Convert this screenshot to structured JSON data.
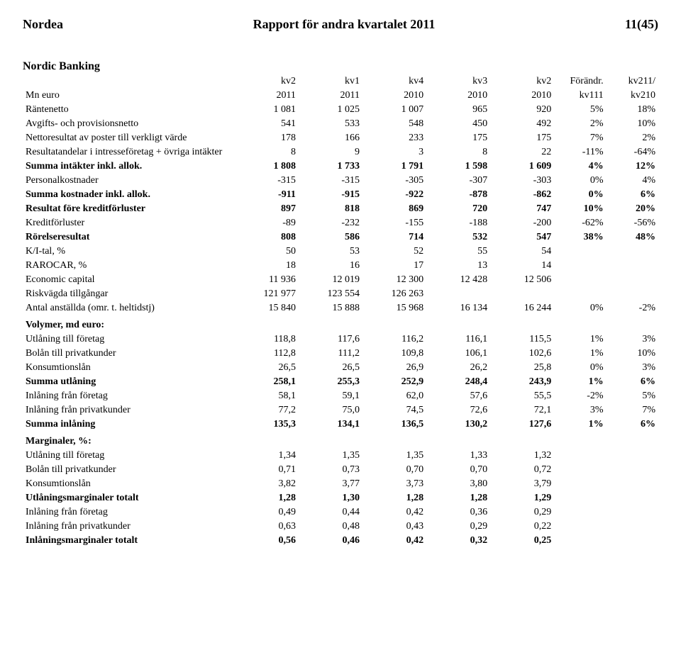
{
  "header": {
    "left": "Nordea",
    "center": "Rapport för andra kvartalet 2011",
    "right": "11(45)"
  },
  "section_title": "Nordic Banking",
  "col_headers_top": [
    "kv2",
    "kv1",
    "kv4",
    "kv3",
    "kv2",
    "Förändr.",
    "kv211/"
  ],
  "col_headers_bot": [
    "Mn euro",
    "2011",
    "2011",
    "2010",
    "2010",
    "2010",
    "kv111",
    "kv210"
  ],
  "rows": [
    {
      "label": "Räntenetto",
      "v": [
        "1 081",
        "1 025",
        "1 007",
        "965",
        "920",
        "5%",
        "18%"
      ],
      "bold": false
    },
    {
      "label": "Avgifts- och provisionsnetto",
      "v": [
        "541",
        "533",
        "548",
        "450",
        "492",
        "2%",
        "10%"
      ],
      "bold": false
    },
    {
      "label": "Nettoresultat av poster till verkligt värde",
      "v": [
        "178",
        "166",
        "233",
        "175",
        "175",
        "7%",
        "2%"
      ],
      "bold": false
    },
    {
      "label": "Resultatandelar i intresseföretag + övriga intäkter",
      "v": [
        "8",
        "9",
        "3",
        "8",
        "22",
        "-11%",
        "-64%"
      ],
      "bold": false
    },
    {
      "label": "Summa intäkter inkl. allok.",
      "v": [
        "1 808",
        "1 733",
        "1 791",
        "1 598",
        "1 609",
        "4%",
        "12%"
      ],
      "bold": true
    },
    {
      "label": "Personalkostnader",
      "v": [
        "-315",
        "-315",
        "-305",
        "-307",
        "-303",
        "0%",
        "4%"
      ],
      "bold": false
    },
    {
      "label": "Summa kostnader inkl. allok.",
      "v": [
        "-911",
        "-915",
        "-922",
        "-878",
        "-862",
        "0%",
        "6%"
      ],
      "bold": true
    },
    {
      "label": "Resultat före kreditförluster",
      "v": [
        "897",
        "818",
        "869",
        "720",
        "747",
        "10%",
        "20%"
      ],
      "bold": true
    },
    {
      "label": "Kreditförluster",
      "v": [
        "-89",
        "-232",
        "-155",
        "-188",
        "-200",
        "-62%",
        "-56%"
      ],
      "bold": false
    },
    {
      "label": "Rörelseresultat",
      "v": [
        "808",
        "586",
        "714",
        "532",
        "547",
        "38%",
        "48%"
      ],
      "bold": true
    },
    {
      "label": "K/I-tal, %",
      "v": [
        "50",
        "53",
        "52",
        "55",
        "54",
        "",
        ""
      ],
      "bold": false
    },
    {
      "label": "RAROCAR, %",
      "v": [
        "18",
        "16",
        "17",
        "13",
        "14",
        "",
        ""
      ],
      "bold": false
    },
    {
      "label": "Economic capital",
      "v": [
        "11 936",
        "12 019",
        "12 300",
        "12 428",
        "12 506",
        "",
        ""
      ],
      "bold": false
    },
    {
      "label": "Riskvägda tillgångar",
      "v": [
        "121 977",
        "123 554",
        "126 263",
        "",
        "",
        "",
        ""
      ],
      "bold": false
    },
    {
      "label": "Antal anställda (omr. t. heltidstj)",
      "v": [
        "15 840",
        "15 888",
        "15 968",
        "16 134",
        "16 244",
        "0%",
        "-2%"
      ],
      "bold": false
    }
  ],
  "volumes_head": "Volymer, md euro:",
  "volumes": [
    {
      "label": "Utlåning till företag",
      "v": [
        "118,8",
        "117,6",
        "116,2",
        "116,1",
        "115,5",
        "1%",
        "3%"
      ],
      "bold": false
    },
    {
      "label": "Bolån till privatkunder",
      "v": [
        "112,8",
        "111,2",
        "109,8",
        "106,1",
        "102,6",
        "1%",
        "10%"
      ],
      "bold": false
    },
    {
      "label": "Konsumtionslån",
      "v": [
        "26,5",
        "26,5",
        "26,9",
        "26,2",
        "25,8",
        "0%",
        "3%"
      ],
      "bold": false
    },
    {
      "label": "Summa utlåning",
      "v": [
        "258,1",
        "255,3",
        "252,9",
        "248,4",
        "243,9",
        "1%",
        "6%"
      ],
      "bold": true
    },
    {
      "label": "Inlåning från företag",
      "v": [
        "58,1",
        "59,1",
        "62,0",
        "57,6",
        "55,5",
        "-2%",
        "5%"
      ],
      "bold": false
    },
    {
      "label": "Inlåning från privatkunder",
      "v": [
        "77,2",
        "75,0",
        "74,5",
        "72,6",
        "72,1",
        "3%",
        "7%"
      ],
      "bold": false
    },
    {
      "label": "Summa inlåning",
      "v": [
        "135,3",
        "134,1",
        "136,5",
        "130,2",
        "127,6",
        "1%",
        "6%"
      ],
      "bold": true
    }
  ],
  "margins_head": "Marginaler, %:",
  "margins": [
    {
      "label": "Utlåning till företag",
      "v": [
        "1,34",
        "1,35",
        "1,35",
        "1,33",
        "1,32",
        "",
        ""
      ],
      "bold": false
    },
    {
      "label": "Bolån till privatkunder",
      "v": [
        "0,71",
        "0,73",
        "0,70",
        "0,70",
        "0,72",
        "",
        ""
      ],
      "bold": false
    },
    {
      "label": "Konsumtionslån",
      "v": [
        "3,82",
        "3,77",
        "3,73",
        "3,80",
        "3,79",
        "",
        ""
      ],
      "bold": false
    },
    {
      "label": "Utlåningsmarginaler totalt",
      "v": [
        "1,28",
        "1,30",
        "1,28",
        "1,28",
        "1,29",
        "",
        ""
      ],
      "bold": true
    },
    {
      "label": "Inlåning från företag",
      "v": [
        "0,49",
        "0,44",
        "0,42",
        "0,36",
        "0,29",
        "",
        ""
      ],
      "bold": false
    },
    {
      "label": "Inlåning från privatkunder",
      "v": [
        "0,63",
        "0,48",
        "0,43",
        "0,29",
        "0,22",
        "",
        ""
      ],
      "bold": false
    },
    {
      "label": "Inlåningsmarginaler totalt",
      "v": [
        "0,56",
        "0,46",
        "0,42",
        "0,32",
        "0,25",
        "",
        ""
      ],
      "bold": true
    }
  ]
}
